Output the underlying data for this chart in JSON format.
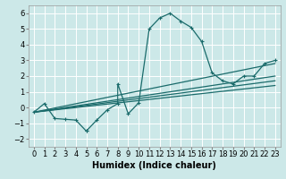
{
  "xlabel": "Humidex (Indice chaleur)",
  "background_color": "#cce8e8",
  "grid_color": "#b8d8d8",
  "line_color": "#1a6b6b",
  "xlim": [
    -0.5,
    23.5
  ],
  "ylim": [
    -2.5,
    6.5
  ],
  "xticks": [
    0,
    1,
    2,
    3,
    4,
    5,
    6,
    7,
    8,
    9,
    10,
    11,
    12,
    13,
    14,
    15,
    16,
    17,
    18,
    19,
    20,
    21,
    22,
    23
  ],
  "yticks": [
    -2,
    -1,
    0,
    1,
    2,
    3,
    4,
    5,
    6
  ],
  "main_x": [
    0,
    1,
    2,
    3,
    4,
    5,
    5,
    6,
    7,
    8,
    8,
    9,
    10,
    11,
    12,
    13,
    14,
    15,
    16,
    17,
    18,
    19,
    20,
    21,
    22,
    23
  ],
  "main_y": [
    -0.3,
    0.25,
    -0.7,
    -0.75,
    -0.8,
    -1.5,
    -1.5,
    -0.8,
    -0.15,
    0.25,
    1.5,
    -0.4,
    0.3,
    5.0,
    5.7,
    6.0,
    5.5,
    5.1,
    4.2,
    2.2,
    1.7,
    1.5,
    2.0,
    2.0,
    2.8,
    3.0
  ],
  "reg_lines": [
    {
      "x0": 0,
      "y0": -0.3,
      "x1": 23,
      "y1": 1.4
    },
    {
      "x0": 0,
      "y0": -0.3,
      "x1": 23,
      "y1": 1.7
    },
    {
      "x0": 0,
      "y0": -0.3,
      "x1": 23,
      "y1": 2.0
    },
    {
      "x0": 0,
      "y0": -0.3,
      "x1": 23,
      "y1": 2.8
    }
  ],
  "fontsize_label": 7,
  "fontsize_tick": 6
}
